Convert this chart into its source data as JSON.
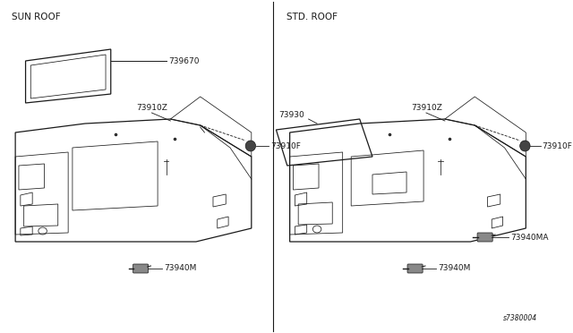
{
  "bg_color": "#ffffff",
  "line_color": "#1a1a1a",
  "gray_color": "#aaaaaa",
  "section_left_title": "SUN ROOF",
  "section_right_title": "STD. ROOF",
  "part_number_ref": "s7380004",
  "fs_label": 6.5,
  "fs_title": 7.5
}
